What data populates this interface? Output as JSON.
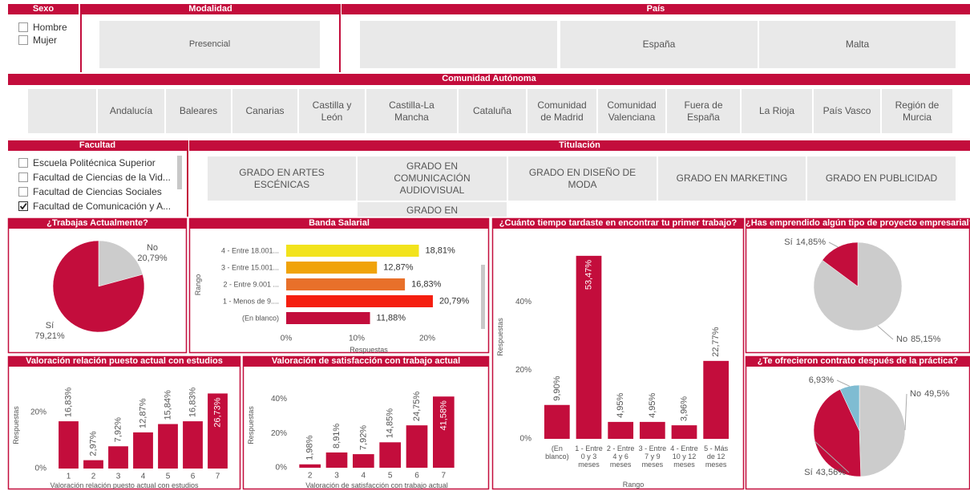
{
  "slicers": {
    "sexo": {
      "title": "Sexo",
      "options": [
        "Hombre",
        "Mujer"
      ],
      "checked": [
        false,
        false
      ]
    },
    "modalidad": {
      "title": "Modalidad",
      "options": [
        "Presencial"
      ]
    },
    "pais": {
      "title": "País",
      "options": [
        "España",
        "Malta"
      ]
    },
    "comunidad": {
      "title": "Comunidad Autónoma",
      "options": [
        "Andalucía",
        "Baleares",
        "Canarias",
        "Castilla y León",
        "Castilla-La Mancha",
        "Cataluña",
        "Comunidad de Madrid",
        "Comunidad Valenciana",
        "Fuera de España",
        "La Rioja",
        "País Vasco",
        "Región de Murcia"
      ]
    },
    "facultad": {
      "title": "Facultad",
      "options": [
        "Escuela Politécnica Superior",
        "Facultad de Ciencias de la Vid...",
        "Facultad de Ciencias Sociales",
        "Facultad de Comunicación y A..."
      ],
      "checked": [
        false,
        false,
        false,
        true
      ]
    },
    "titulacion": {
      "title": "Titulación",
      "options": [
        "GRADO EN ARTES ESCÉNICAS",
        "GRADO EN COMUNICACIÓN AUDIOVISUAL",
        "GRADO EN DISEÑO DE MODA",
        "GRADO EN MARKETING",
        "GRADO EN PUBLICIDAD",
        "GRADO EN"
      ]
    }
  },
  "chart_data": [
    {
      "type": "pie",
      "title": "¿Trabajas Actualmente?",
      "categories": [
        "No",
        "Sí"
      ],
      "values": [
        20.79,
        79.21
      ],
      "value_labels": [
        "20,79%",
        "79,21%"
      ],
      "colors": [
        "#cccccc",
        "#c30d3c"
      ]
    },
    {
      "type": "hbar",
      "title": "Banda Salarial",
      "categories": [
        "4 - Entre 18.001...",
        "3 - Entre 15.001...",
        "2 - Entre 9.001 ...",
        "1 - Menos de 9....",
        "(En blanco)"
      ],
      "values": [
        18.81,
        12.87,
        16.83,
        20.79,
        11.88
      ],
      "value_labels": [
        "18,81%",
        "12,87%",
        "16,83%",
        "20,79%",
        "11,88%"
      ],
      "colors": [
        "#f2e31c",
        "#f0a30a",
        "#e8702a",
        "#f51e0f",
        "#c30d3c"
      ],
      "xlim": [
        0,
        27
      ],
      "xticks": [
        {
          "value": 0,
          "label": "0%"
        },
        {
          "value": 10,
          "label": "10%"
        },
        {
          "value": 20,
          "label": "20%"
        }
      ],
      "xlabel": "Respuestas",
      "ylabel": "Rango"
    },
    {
      "type": "bar",
      "title": "¿Cuánto tiempo tardaste en encontrar tu primer trabajo?",
      "categories": [
        "(En blanco)",
        "1 - Entre 0 y 3 meses",
        "2 - Entre 4 y 6 meses",
        "3 - Entre 7 y 9 meses",
        "4 - Entre 10 y 12 meses",
        "5 - Más de 12 meses"
      ],
      "values": [
        9.9,
        53.47,
        4.95,
        4.95,
        3.96,
        22.77
      ],
      "value_labels": [
        "9,90%",
        "53,47%",
        "4,95%",
        "4,95%",
        "3,96%",
        "22,77%"
      ],
      "color": "#c30d3c",
      "ylim": [
        0,
        60
      ],
      "yticks": [
        {
          "value": 0,
          "label": "0%"
        },
        {
          "value": 20,
          "label": "20%"
        },
        {
          "value": 40,
          "label": "40%"
        }
      ],
      "xlabel": "Rango",
      "ylabel": "Respuestas"
    },
    {
      "type": "pie",
      "title": "¿Has emprendido algún tipo de proyecto empresarial?",
      "categories": [
        "No",
        "Sí"
      ],
      "values": [
        85.15,
        14.85
      ],
      "value_labels": [
        "85,15%",
        "14,85%"
      ],
      "colors": [
        "#cccccc",
        "#c30d3c"
      ]
    },
    {
      "type": "bar",
      "title": "Valoración relación puesto actual con estudios",
      "categories": [
        "1",
        "2",
        "3",
        "4",
        "5",
        "6",
        "7"
      ],
      "values": [
        16.83,
        2.97,
        7.92,
        12.87,
        15.84,
        16.83,
        26.73
      ],
      "value_labels": [
        "16,83%",
        "2,97%",
        "7,92%",
        "12,87%",
        "15,84%",
        "16,83%",
        "26,73%"
      ],
      "color": "#c30d3c",
      "ylim": [
        0,
        32
      ],
      "yticks": [
        {
          "value": 0,
          "label": "0%"
        },
        {
          "value": 20,
          "label": "20%"
        }
      ],
      "xlabel": "Valoración relación puesto actual con estudios",
      "ylabel": "Respuestas"
    },
    {
      "type": "bar",
      "title": "Valoración de satisfacción con trabajo actual",
      "categories": [
        "2",
        "3",
        "4",
        "5",
        "6",
        "7"
      ],
      "values": [
        1.98,
        8.91,
        7.92,
        14.85,
        24.75,
        41.58
      ],
      "value_labels": [
        "1,98%",
        "8,91%",
        "7,92%",
        "14,85%",
        "24,75%",
        "41,58%"
      ],
      "color": "#c30d3c",
      "ylim": [
        0,
        52
      ],
      "yticks": [
        {
          "value": 0,
          "label": "0%"
        },
        {
          "value": 20,
          "label": "20%"
        },
        {
          "value": 40,
          "label": "40%"
        }
      ],
      "xlabel": "Valoración de satisfacción con trabajo actual",
      "ylabel": "Respuestas"
    },
    {
      "type": "pie",
      "title": "¿Te ofrecieron contrato después de la práctica?",
      "categories": [
        "No",
        "Sí",
        null
      ],
      "values": [
        49.5,
        43.56,
        6.93
      ],
      "value_labels": [
        "49,5%",
        "43,56%",
        "6,93%"
      ],
      "colors": [
        "#cccccc",
        "#c30d3c",
        "#7fbcd2"
      ]
    }
  ]
}
